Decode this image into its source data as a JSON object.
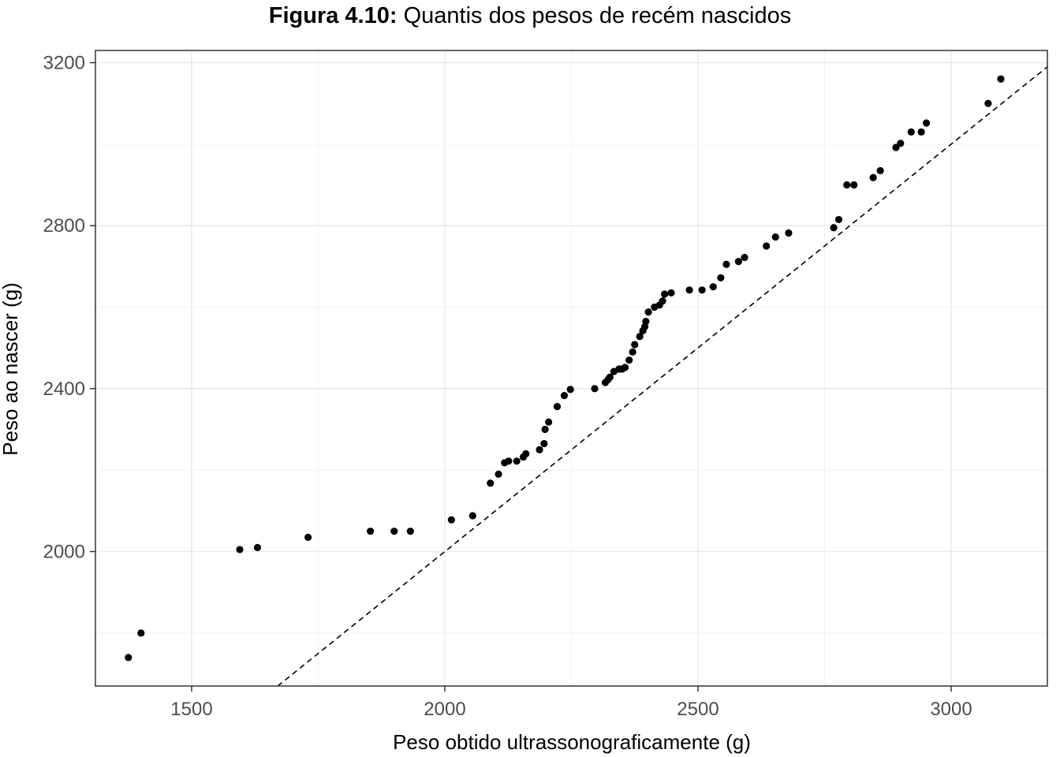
{
  "chart_data": {
    "type": "scatter",
    "title_bold": "Figura 4.10:",
    "title_rest": " Quantis dos pesos de recém nascidos",
    "xlabel": "Peso obtido ultrassonograficamente (g)",
    "ylabel": "Peso ao nascer (g)",
    "xlim": [
      1310,
      3190
    ],
    "ylim": [
      1670,
      3230
    ],
    "x_ticks": [
      1500,
      2000,
      2500,
      3000
    ],
    "y_ticks": [
      2000,
      2400,
      2800,
      3200
    ],
    "x_tick_labels": [
      "1500",
      "2000",
      "2500",
      "3000"
    ],
    "y_tick_labels": [
      "2000",
      "2400",
      "2800",
      "3200"
    ],
    "reference_line": {
      "slope": 1,
      "intercept": 0,
      "style": "dashed"
    },
    "grid": true,
    "point_color": "#000000",
    "x": [
      1375,
      1400,
      1595,
      1630,
      1730,
      1853,
      1900,
      1932,
      2013,
      2055,
      2090,
      2106,
      2118,
      2126,
      2142,
      2155,
      2160,
      2187,
      2196,
      2198,
      2205,
      2222,
      2236,
      2248,
      2296,
      2317,
      2322,
      2326,
      2334,
      2344,
      2350,
      2356,
      2364,
      2371,
      2375,
      2385,
      2391,
      2395,
      2397,
      2402,
      2414,
      2424,
      2430,
      2434,
      2447,
      2483,
      2508,
      2530,
      2545,
      2556,
      2580,
      2592,
      2635,
      2653,
      2679,
      2768,
      2778,
      2794,
      2808,
      2846,
      2860,
      2891,
      2900,
      2921,
      2941,
      2951,
      3073,
      3098
    ],
    "y": [
      1740,
      1800,
      2005,
      2010,
      2035,
      2050,
      2050,
      2050,
      2078,
      2088,
      2168,
      2190,
      2218,
      2222,
      2222,
      2232,
      2240,
      2250,
      2265,
      2300,
      2318,
      2356,
      2383,
      2398,
      2400,
      2415,
      2422,
      2428,
      2442,
      2448,
      2448,
      2452,
      2470,
      2490,
      2508,
      2528,
      2542,
      2552,
      2565,
      2588,
      2600,
      2605,
      2615,
      2632,
      2635,
      2642,
      2642,
      2650,
      2672,
      2705,
      2712,
      2722,
      2750,
      2772,
      2782,
      2795,
      2815,
      2900,
      2900,
      2918,
      2935,
      2992,
      3002,
      3030,
      3030,
      3052,
      3100,
      3160
    ]
  }
}
